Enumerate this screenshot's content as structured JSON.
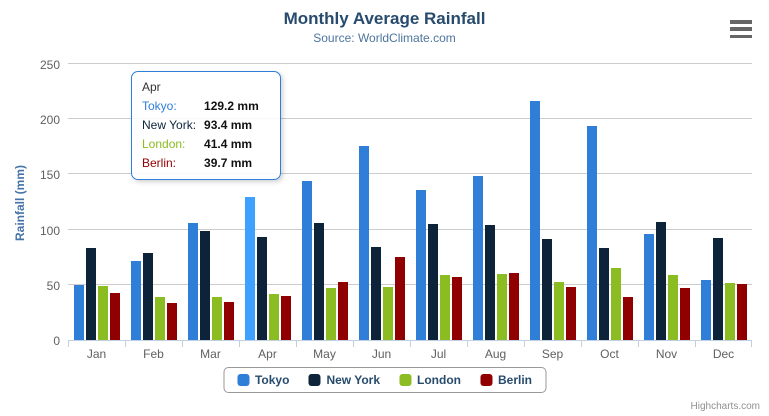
{
  "header": {
    "title": "Monthly Average Rainfall",
    "subtitle": "Source: WorldClimate.com"
  },
  "yaxis": {
    "title": "Rainfall (mm)"
  },
  "chart_data": {
    "type": "bar",
    "title": "Monthly Average Rainfall",
    "subtitle": "Source: WorldClimate.com",
    "categories": [
      "Jan",
      "Feb",
      "Mar",
      "Apr",
      "May",
      "Jun",
      "Jul",
      "Aug",
      "Sep",
      "Oct",
      "Nov",
      "Dec"
    ],
    "series": [
      {
        "name": "Tokyo",
        "color": "#2f7ed8",
        "values": [
          49.9,
          71.5,
          106.4,
          129.2,
          144.0,
          176.0,
          135.6,
          148.5,
          216.4,
          194.1,
          95.6,
          54.4
        ]
      },
      {
        "name": "New York",
        "color": "#0d233a",
        "values": [
          83.6,
          78.8,
          98.5,
          93.4,
          106.0,
          84.5,
          105.0,
          104.3,
          91.2,
          83.5,
          106.6,
          92.3
        ]
      },
      {
        "name": "London",
        "color": "#8bbc21",
        "values": [
          48.9,
          38.8,
          39.3,
          41.4,
          47.0,
          48.3,
          59.0,
          59.6,
          52.4,
          65.2,
          59.3,
          51.2
        ]
      },
      {
        "name": "Berlin",
        "color": "#910000",
        "values": [
          42.4,
          33.2,
          34.5,
          39.7,
          52.6,
          75.5,
          57.4,
          60.4,
          47.6,
          39.1,
          46.8,
          51.1
        ]
      }
    ],
    "xlabel": "",
    "ylabel": "Rainfall (mm)",
    "ylim": [
      0,
      250
    ],
    "yticks": [
      0,
      50,
      100,
      150,
      200,
      250
    ],
    "grid": true,
    "legend_position": "bottom"
  },
  "tooltip": {
    "header": "Apr",
    "hover_series": "Tokyo",
    "hover_category": "Apr",
    "rows": [
      {
        "label": "Tokyo:",
        "value": "129.2 mm",
        "color": "#2f7ed8"
      },
      {
        "label": "New York:",
        "value": "93.4 mm",
        "color": "#0d233a"
      },
      {
        "label": "London:",
        "value": "41.4 mm",
        "color": "#8bbc21"
      },
      {
        "label": "Berlin:",
        "value": "39.7 mm",
        "color": "#910000"
      }
    ]
  },
  "legend": {
    "items": [
      {
        "label": "Tokyo",
        "color": "#2f7ed8"
      },
      {
        "label": "New York",
        "color": "#0d233a"
      },
      {
        "label": "London",
        "color": "#8bbc21"
      },
      {
        "label": "Berlin",
        "color": "#910000"
      }
    ]
  },
  "credits": {
    "text": "Highcharts.com"
  }
}
